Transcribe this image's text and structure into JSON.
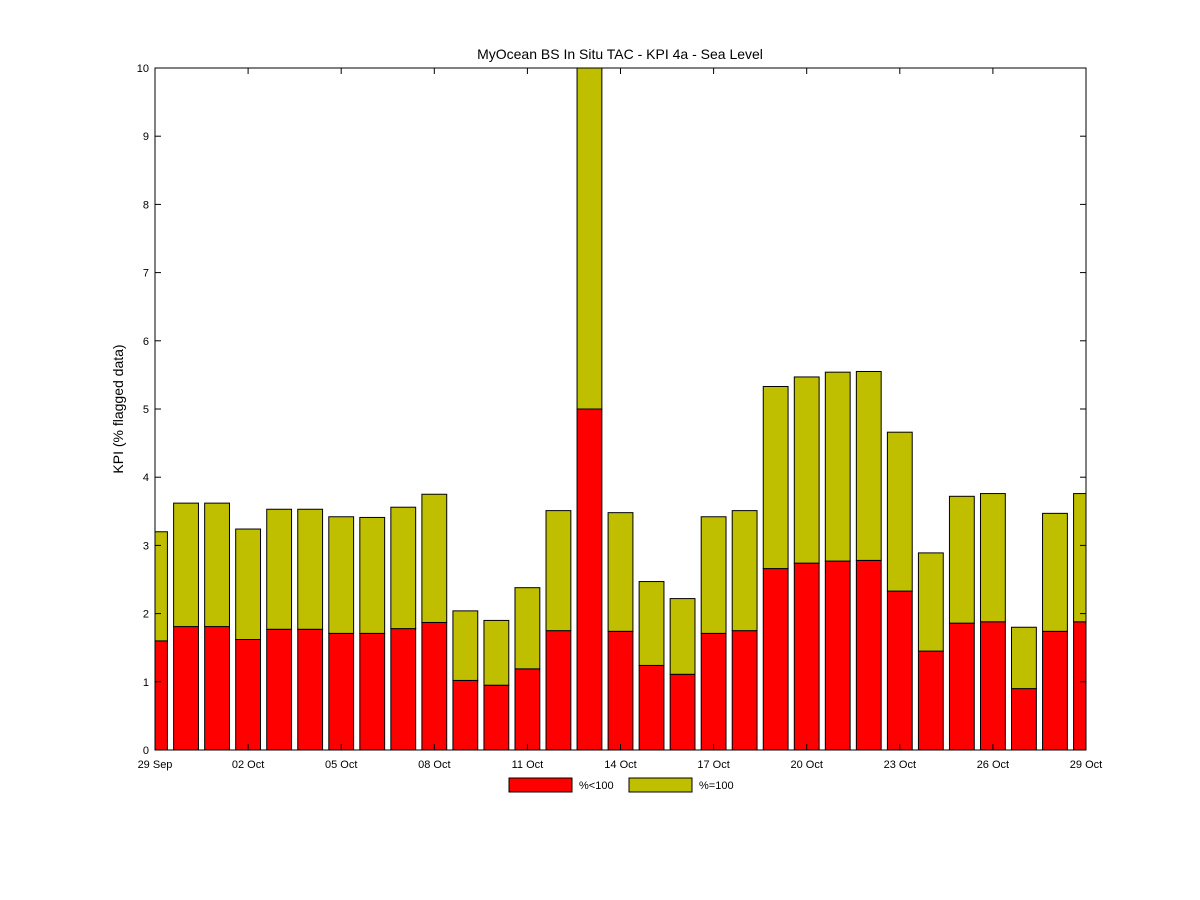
{
  "chart_data": {
    "type": "bar",
    "stacked": true,
    "title": "MyOcean  BS In Situ TAC - KPI 4a - Sea Level",
    "xlabel": "",
    "ylabel": "KPI (% flagged data)",
    "xlim": [
      0,
      30
    ],
    "ylim": [
      0,
      10
    ],
    "grid": false,
    "legend_position": "bottom-center",
    "x_tick_values": [
      0,
      3,
      6,
      9,
      12,
      15,
      18,
      21,
      24,
      27,
      30
    ],
    "x_tick_labels": [
      "29 Sep",
      "02 Oct",
      "05 Oct",
      "08 Oct",
      "11 Oct",
      "14 Oct",
      "17 Oct",
      "20 Oct",
      "23 Oct",
      "26 Oct",
      "29 Oct"
    ],
    "y_tick_values": [
      0,
      1,
      2,
      3,
      4,
      5,
      6,
      7,
      8,
      9,
      10
    ],
    "y_tick_labels": [
      "0",
      "1",
      "2",
      "3",
      "4",
      "5",
      "6",
      "7",
      "8",
      "9",
      "10"
    ],
    "x": [
      0,
      1,
      2,
      3,
      4,
      5,
      6,
      7,
      8,
      9,
      10,
      11,
      12,
      13,
      14,
      15,
      16,
      17,
      18,
      19,
      20,
      21,
      22,
      23,
      24,
      25,
      26,
      27,
      28,
      29,
      30
    ],
    "series": [
      {
        "name": "%<100",
        "color": "#ff0000",
        "values": [
          1.6,
          1.81,
          1.81,
          1.62,
          1.77,
          1.77,
          1.71,
          1.71,
          1.78,
          1.87,
          1.02,
          0.95,
          1.19,
          1.75,
          5.0,
          1.74,
          1.24,
          1.11,
          1.71,
          1.75,
          2.66,
          2.74,
          2.77,
          2.78,
          2.33,
          1.45,
          1.86,
          1.88,
          0.9,
          1.74,
          1.88
        ]
      },
      {
        "name": "%=100",
        "color": "#bfbf00",
        "values": [
          1.6,
          1.81,
          1.81,
          1.62,
          1.76,
          1.76,
          1.71,
          1.7,
          1.78,
          1.88,
          1.02,
          0.95,
          1.19,
          1.76,
          5.0,
          1.74,
          1.23,
          1.11,
          1.71,
          1.76,
          2.67,
          2.73,
          2.77,
          2.77,
          2.33,
          1.44,
          1.86,
          1.88,
          0.9,
          1.73,
          1.88
        ]
      }
    ]
  }
}
